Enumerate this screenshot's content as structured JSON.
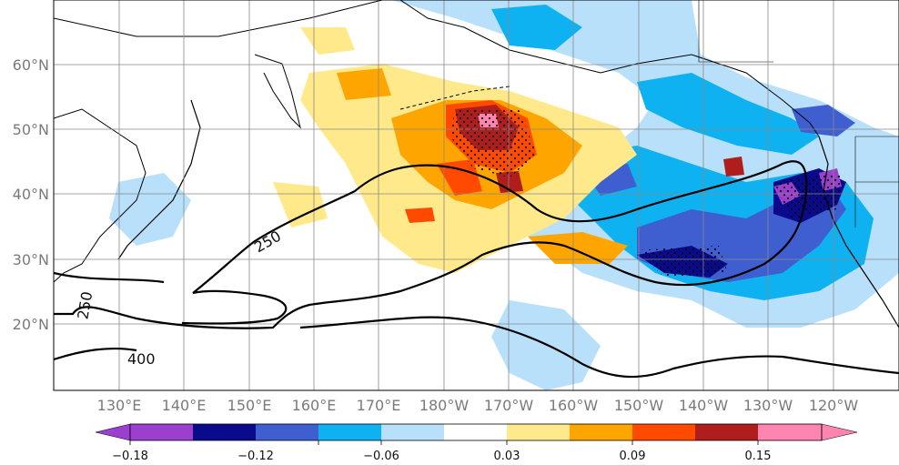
{
  "map": {
    "lat_labels": [
      "60°N",
      "50°N",
      "40°N",
      "30°N",
      "20°N"
    ],
    "lon_labels": [
      "130°E",
      "140°E",
      "150°E",
      "160°E",
      "170°E",
      "180°W",
      "170°W",
      "160°W",
      "150°W",
      "140°W",
      "130°W",
      "120°W"
    ],
    "contour_labels": [
      "250",
      "250",
      "400"
    ]
  },
  "colorbar": {
    "tick_labels": [
      "−0.18",
      "−0.12",
      "−0.06",
      "0.03",
      "0.09",
      "0.15"
    ],
    "colors": [
      "#9b3fcf",
      "#0a0a8c",
      "#3f5fd0",
      "#0fb2f0",
      "#b8e0fa",
      "#ffffff",
      "#ffe98a",
      "#ffa500",
      "#ff4a00",
      "#b01d1d",
      "#ff85b0"
    ]
  }
}
